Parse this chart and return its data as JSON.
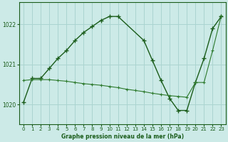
{
  "title": "Graphe pression niveau de la mer (hPa)",
  "background_color": "#cceae7",
  "grid_color": "#aad4d0",
  "line_color1": "#1a5c1a",
  "line_color2": "#2d7a2d",
  "xlim": [
    -0.5,
    23.5
  ],
  "ylim": [
    1019.5,
    1022.55
  ],
  "yticks": [
    1020,
    1021,
    1022
  ],
  "xticks": [
    0,
    1,
    2,
    3,
    4,
    5,
    6,
    7,
    8,
    9,
    10,
    11,
    12,
    13,
    14,
    15,
    16,
    17,
    18,
    19,
    20,
    21,
    22,
    23
  ],
  "series1_x": [
    0,
    1,
    2,
    3,
    4,
    5,
    6,
    7,
    8,
    9,
    10,
    11,
    14,
    15,
    16,
    17,
    18,
    19,
    20,
    21,
    22,
    23
  ],
  "series1_y": [
    1020.05,
    1020.65,
    1020.65,
    1020.9,
    1021.15,
    1021.35,
    1021.6,
    1021.8,
    1021.95,
    1022.1,
    1022.2,
    1022.2,
    1021.6,
    1021.1,
    1020.6,
    1020.15,
    1019.85,
    1019.85,
    1020.55,
    1021.15,
    1021.9,
    1022.2
  ],
  "series2_x": [
    0,
    1,
    2,
    3,
    4,
    5,
    6,
    7,
    8,
    9,
    10,
    11,
    12,
    13,
    14,
    15,
    16,
    17,
    18,
    19,
    20,
    21,
    22,
    23
  ],
  "series2_y": [
    1020.6,
    1020.62,
    1020.62,
    1020.62,
    1020.6,
    1020.58,
    1020.55,
    1020.52,
    1020.5,
    1020.48,
    1020.45,
    1020.42,
    1020.38,
    1020.35,
    1020.32,
    1020.28,
    1020.25,
    1020.22,
    1020.2,
    1020.18,
    1020.55,
    1020.55,
    1021.35,
    1022.22
  ]
}
